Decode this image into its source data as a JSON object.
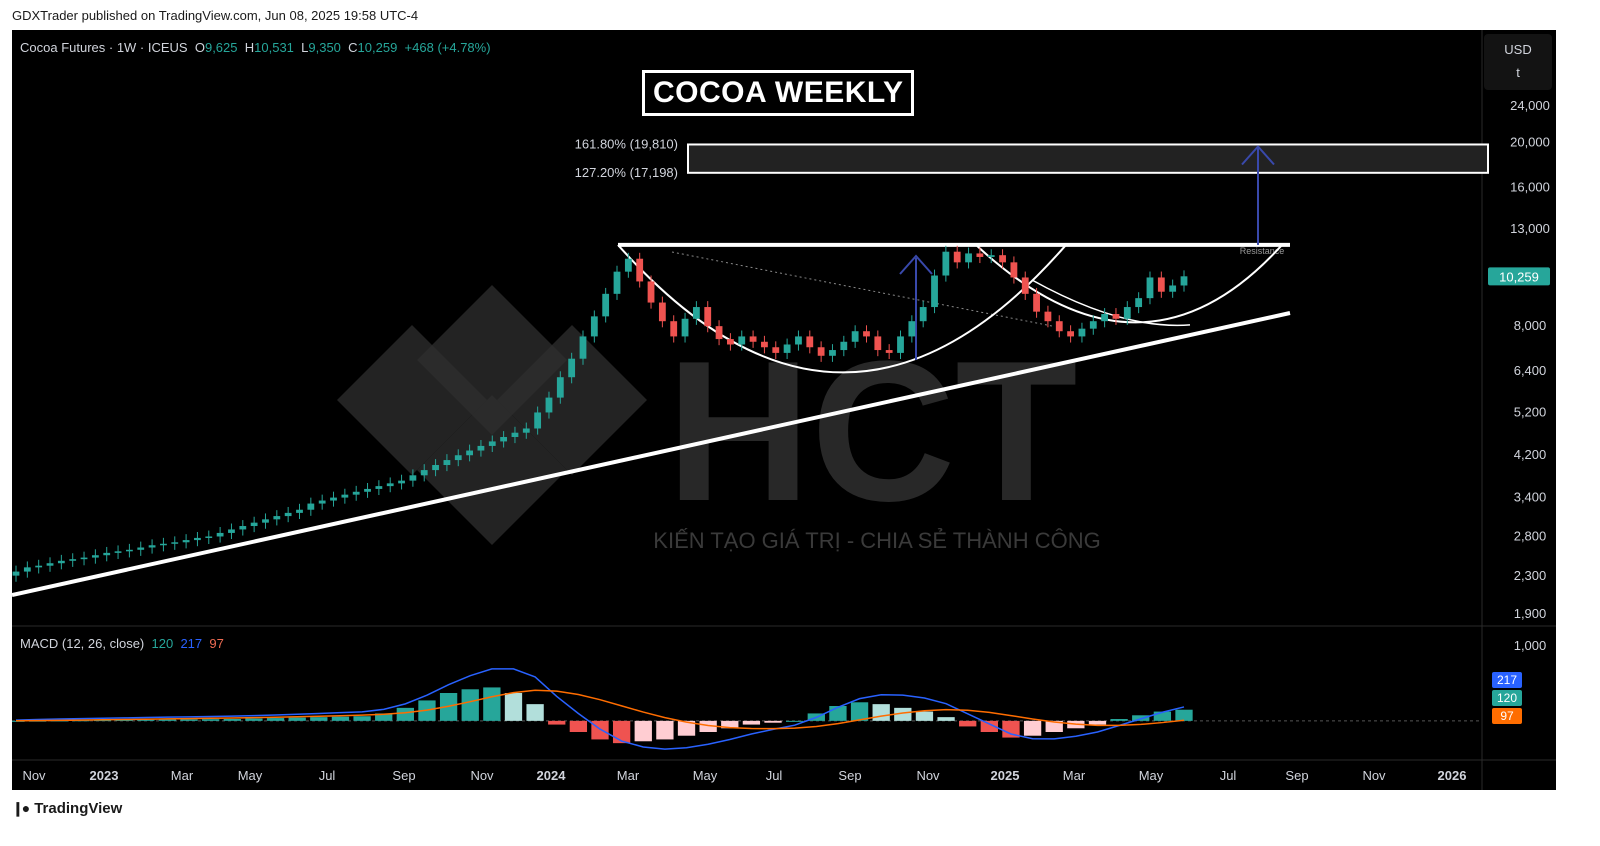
{
  "header": {
    "text": "GDXTrader published on TradingView.com, Jun 08, 2025 19:58 UTC-4"
  },
  "footer": {
    "brand": "TradingView",
    "logo_icon": "tradingview-logo-icon"
  },
  "symbol": {
    "name": "Cocoa Futures · 1W · ICEUS",
    "o_label": "O",
    "o": "9,625",
    "h_label": "H",
    "h": "10,531",
    "l_label": "L",
    "l": "9,350",
    "c_label": "C",
    "c": "10,259",
    "change": "+468 (+4.78%)"
  },
  "currency": {
    "unit": "USD",
    "extra": "t"
  },
  "title": "COCOA WEEKLY",
  "watermark": {
    "text": "HCT",
    "slogan": "KIẾN TẠO GIÁ TRỊ - CHIA SẺ THÀNH CÔNG"
  },
  "colors": {
    "up": "#26a69a",
    "down": "#ef5350",
    "macd": "#2962ff",
    "signal": "#ff6d00",
    "background": "#000000"
  },
  "macd": {
    "label": "MACD (12, 26, close)",
    "hist": "120",
    "macd": "217",
    "signal": "97",
    "hist_color": "#26a69a",
    "macd_color": "#2962ff",
    "signal_color": "#ef6c53",
    "axis_label": "1,000"
  },
  "chart_data": {
    "type": "candlestick",
    "title": "COCOA WEEKLY",
    "x_ticks": [
      "Nov",
      "2023",
      "Mar",
      "May",
      "Jul",
      "Sep",
      "Nov",
      "2024",
      "Mar",
      "May",
      "Jul",
      "Sep",
      "Nov",
      "2025",
      "Mar",
      "May",
      "Jul",
      "Sep",
      "Nov",
      "2026"
    ],
    "y_ticks": [
      "24,000",
      "20,000",
      "16,000",
      "13,000",
      "10,259",
      "8,000",
      "6,400",
      "5,200",
      "4,200",
      "3,400",
      "2,800",
      "2,300",
      "1,900"
    ],
    "y_scale": "log",
    "last_price": "10,259",
    "fib_levels": [
      {
        "label": "161.80% (19,810)",
        "value": 19810
      },
      {
        "label": "127.20% (17,198)",
        "value": 17198
      }
    ],
    "resistance": {
      "label": "Resistance",
      "value": 12000
    },
    "weekly_close_approx": [
      2350,
      2400,
      2420,
      2450,
      2480,
      2500,
      2520,
      2550,
      2580,
      2600,
      2620,
      2650,
      2680,
      2700,
      2720,
      2750,
      2780,
      2800,
      2850,
      2900,
      2950,
      3000,
      3050,
      3100,
      3150,
      3200,
      3300,
      3350,
      3400,
      3450,
      3500,
      3550,
      3600,
      3650,
      3700,
      3800,
      3900,
      4000,
      4100,
      4200,
      4300,
      4400,
      4500,
      4600,
      4700,
      4800,
      5200,
      5600,
      6200,
      6800,
      7600,
      8400,
      9400,
      10500,
      11200,
      10000,
      9000,
      8200,
      7600,
      8300,
      8800,
      8000,
      7500,
      7300,
      7600,
      7400,
      7200,
      7000,
      7300,
      7600,
      7200,
      6900,
      7100,
      7400,
      7800,
      7600,
      7100,
      7000,
      7600,
      8200,
      8800,
      10300,
      11600,
      11000,
      11500,
      11300,
      11400,
      11000,
      10200,
      9400,
      8600,
      8200,
      7800,
      7600,
      7900,
      8200,
      8500,
      8300,
      8800,
      9200,
      10200,
      9500,
      9800,
      10259
    ],
    "macd_hist_approx": [
      0,
      2,
      4,
      6,
      8,
      10,
      12,
      14,
      16,
      18,
      20,
      25,
      30,
      35,
      40,
      45,
      50,
      80,
      140,
      220,
      300,
      340,
      360,
      300,
      180,
      -40,
      -120,
      -200,
      -240,
      -220,
      -200,
      -160,
      -120,
      -80,
      -40,
      -20,
      0,
      80,
      160,
      200,
      180,
      140,
      100,
      40,
      -60,
      -120,
      -180,
      -160,
      -120,
      -80,
      -40,
      20,
      60,
      100,
      120
    ],
    "macd_hist_range": [
      -400,
      1000
    ]
  }
}
